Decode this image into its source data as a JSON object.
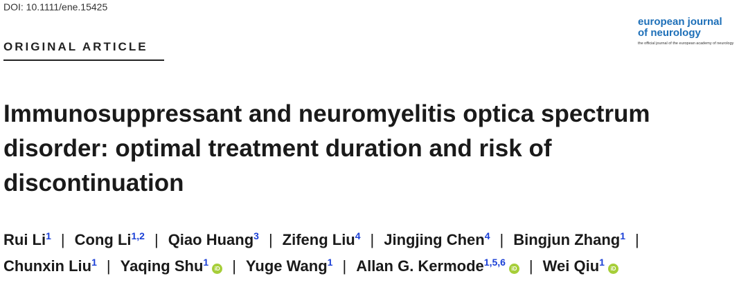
{
  "header": {
    "doi": "DOI: 10.1111/ene.15425",
    "journal_line1": "european journal",
    "journal_line2": "of neurology",
    "journal_tagline": "the official journal of the european academy of neurology",
    "article_type": "ORIGINAL ARTICLE"
  },
  "title": [
    "Immunosuppressant and neuromyelitis optica spectrum",
    "disorder: optimal treatment duration and risk of",
    "discontinuation"
  ],
  "separator": "|",
  "orcid_icon": "iD",
  "authors": [
    {
      "name": "Rui Li",
      "affiliations": "1",
      "orcid": false
    },
    {
      "name": "Cong Li",
      "affiliations": "1,2",
      "orcid": false
    },
    {
      "name": "Qiao Huang",
      "affiliations": "3",
      "orcid": false
    },
    {
      "name": "Zifeng Liu",
      "affiliations": "4",
      "orcid": false
    },
    {
      "name": "Jingjing Chen",
      "affiliations": "4",
      "orcid": false
    },
    {
      "name": "Bingjun Zhang",
      "affiliations": "1",
      "orcid": false
    },
    {
      "name": "Chunxin Liu",
      "affiliations": "1",
      "orcid": false
    },
    {
      "name": "Yaqing Shu",
      "affiliations": "1",
      "orcid": true
    },
    {
      "name": "Yuge Wang",
      "affiliations": "1",
      "orcid": false
    },
    {
      "name": "Allan G. Kermode",
      "affiliations": "1,5,6",
      "orcid": true
    },
    {
      "name": "Wei Qiu",
      "affiliations": "1",
      "orcid": true
    }
  ]
}
